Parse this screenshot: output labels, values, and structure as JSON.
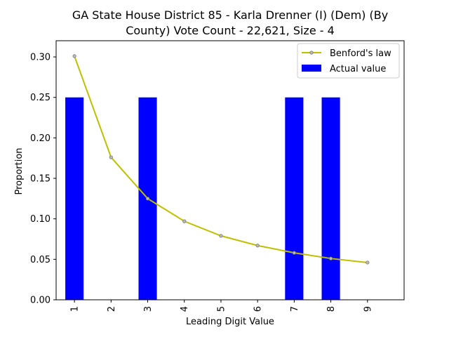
{
  "chart_data": {
    "type": "bar",
    "title_line1": "GA State House District 85 - Karla Drenner (I) (Dem) (By",
    "title_line2": "County) Vote Count - 22,621, Size - 4",
    "xlabel": "Leading Digit Value",
    "ylabel": "Proportion",
    "categories": [
      "1",
      "2",
      "3",
      "4",
      "5",
      "6",
      "7",
      "8",
      "9"
    ],
    "ylim": [
      0,
      0.32
    ],
    "yticks": [
      "0.00",
      "0.05",
      "0.10",
      "0.15",
      "0.20",
      "0.25",
      "0.30"
    ],
    "grid": false,
    "legend_position": "top-right",
    "series": [
      {
        "name": "Benford's law",
        "kind": "line",
        "color": "#bfbf00",
        "values": [
          0.301,
          0.176,
          0.125,
          0.097,
          0.079,
          0.067,
          0.058,
          0.051,
          0.046
        ]
      },
      {
        "name": "Actual value",
        "kind": "bar",
        "color": "#0000ff",
        "values": [
          0.25,
          0.0,
          0.25,
          0.0,
          0.0,
          0.0,
          0.25,
          0.25,
          0.0
        ]
      }
    ]
  }
}
